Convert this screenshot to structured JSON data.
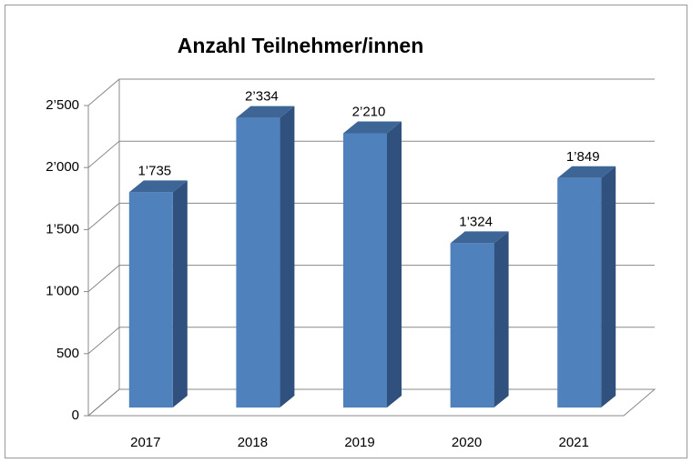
{
  "chart_data": {
    "type": "bar3d",
    "title": "Anzahl Teilnehmer/innen",
    "categories": [
      "2017",
      "2018",
      "2019",
      "2020",
      "2021"
    ],
    "values": [
      1735,
      2334,
      2210,
      1324,
      1849
    ],
    "value_labels": [
      "1’735",
      "2’334",
      "2’210",
      "1’324",
      "1’849"
    ],
    "color": "#4f81bd",
    "ylim": [
      0,
      2500
    ],
    "yticks": [
      0,
      500,
      {
        "value": 1000,
        "label": "1’000"
      },
      {
        "value": 1500,
        "label": "1’500"
      },
      {
        "value": 2000,
        "label": "2’000"
      },
      {
        "value": 2500,
        "label": "2’500"
      }
    ],
    "grid": true
  }
}
